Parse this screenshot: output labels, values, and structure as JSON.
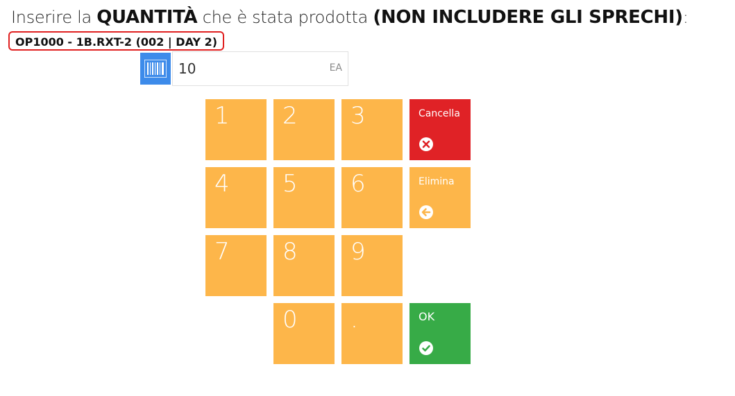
{
  "prompt": {
    "part1": "Inserire la ",
    "emphasis1": "QUANTITÀ",
    "part2": " che è stata prodotta ",
    "emphasis2": "(NON INCLUDERE GLI SPRECHI)",
    "part3": ":"
  },
  "operation_badge": "OP1000 - 1B.RXT-2 (002 | DAY 2)",
  "quantity_field": {
    "value": "10",
    "unit": "EA",
    "scan_icon": "barcode-icon"
  },
  "keypad": {
    "digits": {
      "d1": "1",
      "d2": "2",
      "d3": "3",
      "d4": "4",
      "d5": "5",
      "d6": "6",
      "d7": "7",
      "d8": "8",
      "d9": "9",
      "d0": "0",
      "dot": "."
    },
    "cancel": {
      "label": "Cancella",
      "icon": "times-circle-icon"
    },
    "delete": {
      "label": "Elimina",
      "icon": "arrow-left-circle-icon"
    },
    "ok": {
      "label": "OK",
      "icon": "check-circle-icon"
    }
  },
  "colors": {
    "key": "#fdb64a",
    "cancel": "#e02226",
    "ok": "#37ab47",
    "scan": "#3d8bea",
    "badge_border": "#e02020"
  }
}
